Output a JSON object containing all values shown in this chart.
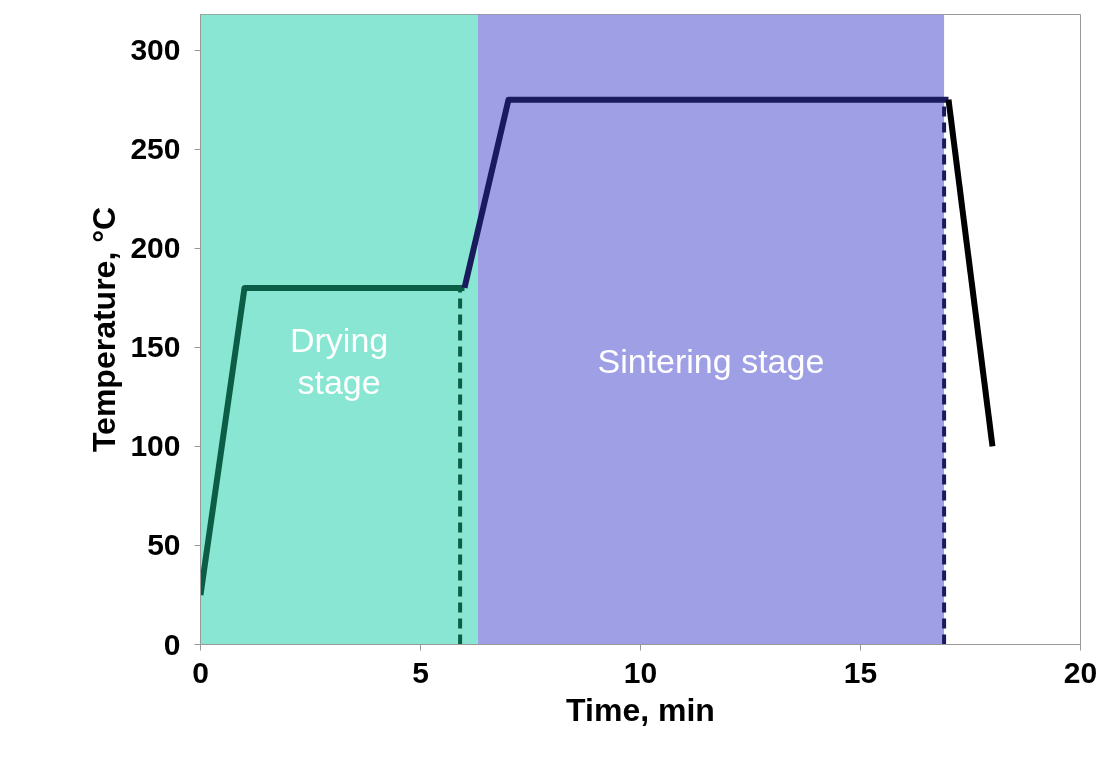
{
  "chart_data": {
    "type": "line",
    "xlabel": "Time, min",
    "ylabel": "Temperature, °C",
    "xlim": [
      0,
      20
    ],
    "ylim": [
      0,
      318
    ],
    "xticks": [
      0,
      5,
      10,
      15,
      20
    ],
    "yticks": [
      0,
      50,
      100,
      150,
      200,
      250,
      300
    ],
    "grid": false,
    "marker": "none",
    "series": [
      {
        "color": "#0b5e45",
        "x": [
          0,
          1,
          6
        ],
        "values": [
          25,
          180,
          180
        ]
      },
      {
        "color": "#1a1a5e",
        "x": [
          6,
          7,
          17
        ],
        "values": [
          180,
          275,
          275
        ]
      },
      {
        "color": "#000000",
        "x": [
          17,
          18
        ],
        "values": [
          275,
          100
        ]
      },
      {
        "color": "#0b5e45",
        "x": [
          5.9,
          5.9
        ],
        "values": [
          0,
          180
        ],
        "line_style": "dashed"
      },
      {
        "color": "#1a1a5e",
        "x": [
          16.9,
          16.9
        ],
        "values": [
          0,
          275
        ],
        "line_style": "dashed"
      }
    ],
    "bands": [
      {
        "axis": "x",
        "from": 0,
        "to": 6.3,
        "label": "Drying\nstage",
        "color": "#88e6d2"
      },
      {
        "axis": "x",
        "from": 6.3,
        "to": 16.9,
        "label": "Sintering stage",
        "color": "#9f9fe6"
      }
    ]
  }
}
